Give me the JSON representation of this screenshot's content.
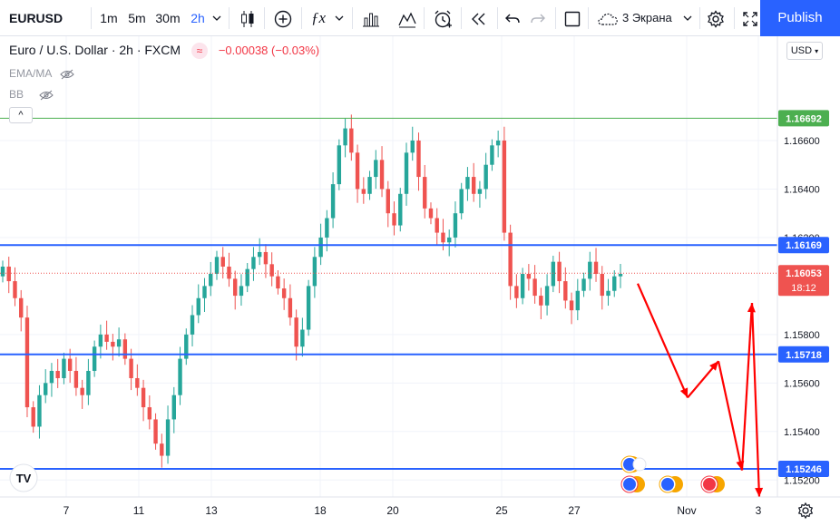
{
  "toolbar": {
    "symbol": "EURUSD",
    "intervals": [
      "1m",
      "5m",
      "30m",
      "2h"
    ],
    "active_interval": "2h",
    "layout_label": "3 Экрана",
    "publish_label": "Publish",
    "icons": [
      "candles-icon",
      "add-compare-icon",
      "indicators-icon",
      "templates-icon",
      "alert-icon",
      "replay-icon",
      "undo-icon",
      "redo-icon",
      "layout-icon",
      "cloud-icon",
      "settings-icon",
      "fullscreen-icon"
    ]
  },
  "legend": {
    "title": "Euro / U.S. Dollar · 2h · FXCM",
    "change": "−0.00038 (−0.03%)",
    "indicators": [
      "EMA/MA",
      "BB"
    ],
    "collapse_glyph": "^"
  },
  "currency_selector": "USD",
  "colors": {
    "up": "#26a69a",
    "down": "#ef5350",
    "level_line": "#2962ff",
    "prediction_arrow": "#ff0000",
    "high_line": "#4caf50"
  },
  "chart_data": {
    "type": "candlestick",
    "symbol": "EURUSD",
    "ylim": [
      1.1513,
      1.1703
    ],
    "price_ticks": [
      "1.16600",
      "1.16400",
      "1.16200",
      "1.15800",
      "1.15600",
      "1.15400",
      "1.15200"
    ],
    "x_ticks": [
      "7",
      "11",
      "13",
      "18",
      "20",
      "25",
      "27",
      "Nov",
      "3"
    ],
    "horizontal_levels": [
      {
        "label": "1.16692",
        "value": 1.16692,
        "color": "#4caf50"
      },
      {
        "label": "1.16169",
        "value": 1.16169,
        "color": "#2962ff"
      },
      {
        "label": "1.15718",
        "value": 1.15718,
        "color": "#2962ff"
      },
      {
        "label": "1.15246",
        "value": 1.15246,
        "color": "#2962ff"
      }
    ],
    "last_price": {
      "label": "1.16053",
      "value": 1.16053,
      "countdown": "18:12",
      "color": "#ef5350"
    },
    "candles_close_path": [
      1.1608,
      1.1602,
      1.1595,
      1.1587,
      1.155,
      1.1542,
      1.1555,
      1.156,
      1.1565,
      1.1562,
      1.157,
      1.1565,
      1.1558,
      1.1555,
      1.1565,
      1.1575,
      1.158,
      1.1577,
      1.1575,
      1.1578,
      1.157,
      1.1562,
      1.1558,
      1.155,
      1.1545,
      1.1535,
      1.153,
      1.1545,
      1.1555,
      1.157,
      1.158,
      1.1588,
      1.1595,
      1.16,
      1.1605,
      1.1612,
      1.1608,
      1.1603,
      1.1596,
      1.16,
      1.1607,
      1.1612,
      1.1614,
      1.1609,
      1.1604,
      1.1599,
      1.1595,
      1.1587,
      1.1575,
      1.1582,
      1.16,
      1.1612,
      1.162,
      1.1628,
      1.1642,
      1.1658,
      1.1665,
      1.1655,
      1.164,
      1.1638,
      1.1645,
      1.1652,
      1.164,
      1.163,
      1.1625,
      1.1638,
      1.1655,
      1.166,
      1.1645,
      1.1632,
      1.1628,
      1.1622,
      1.1618,
      1.162,
      1.163,
      1.164,
      1.1645,
      1.1638,
      1.164,
      1.165,
      1.1658,
      1.166,
      1.1622,
      1.16,
      1.1595,
      1.1605,
      1.1603,
      1.1596,
      1.1592,
      1.16,
      1.161,
      1.1602,
      1.1594,
      1.159,
      1.1598,
      1.1603,
      1.161,
      1.1605,
      1.1596,
      1.1598,
      1.1604,
      1.1605
    ],
    "prediction_path": [
      {
        "x": "27+",
        "y": 1.1601
      },
      {
        "x": "~Nov",
        "y": 1.1554
      },
      {
        "x": "~Nov+",
        "y": 1.1569
      },
      {
        "x": "~3",
        "y": 1.1524
      },
      {
        "x": "~3+",
        "y": 1.1593
      },
      {
        "x": "3",
        "y": 1.1513
      }
    ],
    "grid": true,
    "watermark_logo": "TV"
  }
}
